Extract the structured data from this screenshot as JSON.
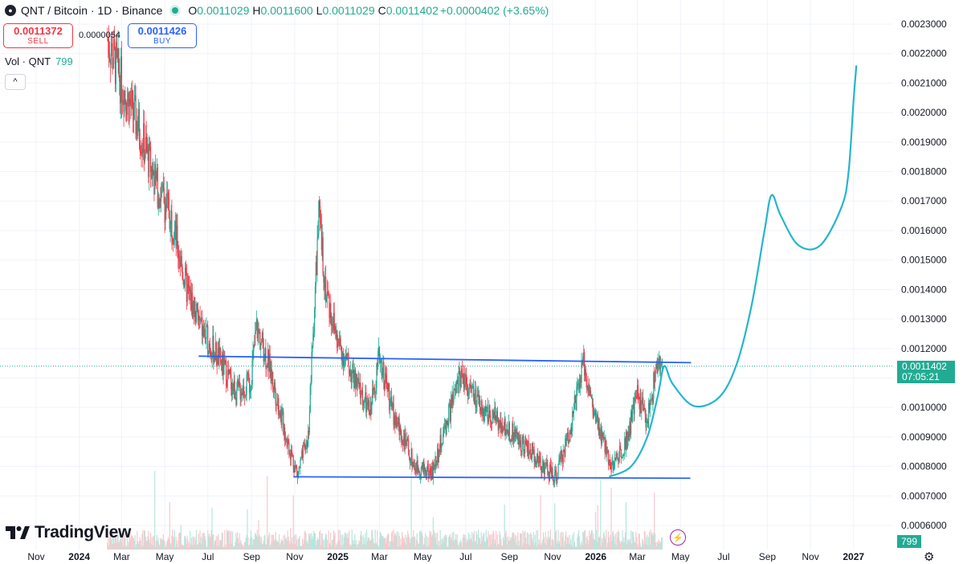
{
  "header": {
    "symbol_title": "QNT / Bitcoin · 1D · Binance",
    "ohlc": [
      {
        "k": "O",
        "v": "0.0011029"
      },
      {
        "k": "H",
        "v": "0.0011600"
      },
      {
        "k": "L",
        "v": "0.0011029"
      },
      {
        "k": "C",
        "v": "0.0011402"
      }
    ],
    "change": "+0.0000402 (+3.65%)"
  },
  "trade": {
    "sell_price": "0.0011372",
    "sell_label": "SELL",
    "spread": "0.0000054",
    "buy_price": "0.0011426",
    "buy_label": "BUY"
  },
  "volume_legend": {
    "label": "Vol · QNT",
    "value": "799"
  },
  "branding": {
    "name": "TradingView"
  },
  "last_price": {
    "value": "0.0011402",
    "countdown": "07:05:21"
  },
  "volume_tag": "799",
  "colors": {
    "up": "#22ab94",
    "down": "#f23645",
    "trendline": "#2962ff",
    "projection": "#26b5cc",
    "volume_up": "#b9e5dd",
    "volume_down": "#f7c9cd"
  },
  "chart_data": {
    "type": "candlestick",
    "y_axis_scale": "linear",
    "ylim": [
      0.00055,
      0.00234
    ],
    "y_ticks": [
      "0.0023000",
      "0.0022000",
      "0.0021000",
      "0.0020000",
      "0.0019000",
      "0.0018000",
      "0.0017000",
      "0.0016000",
      "0.0015000",
      "0.0014000",
      "0.0013000",
      "0.0012000",
      "0.0011000",
      "0.0010000",
      "0.0009000",
      "0.0008000",
      "0.0007000",
      "0.0006000"
    ],
    "y_tick_values": [
      0.0023,
      0.0022,
      0.0021,
      0.002,
      0.0019,
      0.0018,
      0.0017,
      0.0016,
      0.0015,
      0.0014,
      0.0013,
      0.0012,
      0.0011,
      0.001,
      0.0009,
      0.0008,
      0.0007,
      0.0006
    ],
    "x_range": [
      "2023-11-01",
      "2027-02-01"
    ],
    "x_ticks": [
      {
        "label": "Nov",
        "date": "2023-11-01",
        "bold": false
      },
      {
        "label": "2024",
        "date": "2024-01-01",
        "bold": true
      },
      {
        "label": "Mar",
        "date": "2024-03-01",
        "bold": false
      },
      {
        "label": "May",
        "date": "2024-05-01",
        "bold": false
      },
      {
        "label": "Jul",
        "date": "2024-07-01",
        "bold": false
      },
      {
        "label": "Sep",
        "date": "2024-09-01",
        "bold": false
      },
      {
        "label": "Nov",
        "date": "2024-11-01",
        "bold": false
      },
      {
        "label": "2025",
        "date": "2025-01-01",
        "bold": true
      },
      {
        "label": "Mar",
        "date": "2025-03-01",
        "bold": false
      },
      {
        "label": "May",
        "date": "2025-05-01",
        "bold": false
      },
      {
        "label": "Jul",
        "date": "2025-07-01",
        "bold": false
      },
      {
        "label": "Sep",
        "date": "2025-09-01",
        "bold": false
      },
      {
        "label": "Nov",
        "date": "2025-11-01",
        "bold": false
      },
      {
        "label": "2026",
        "date": "2026-01-01",
        "bold": true
      },
      {
        "label": "Mar",
        "date": "2026-03-01",
        "bold": false
      },
      {
        "label": "May",
        "date": "2026-05-01",
        "bold": false
      },
      {
        "label": "Jul",
        "date": "2026-07-01",
        "bold": false
      },
      {
        "label": "Sep",
        "date": "2026-09-01",
        "bold": false
      },
      {
        "label": "Nov",
        "date": "2026-11-01",
        "bold": false
      },
      {
        "label": "2027",
        "date": "2027-01-01",
        "bold": true
      }
    ],
    "price_path": [
      {
        "date": "2024-02-10",
        "price": 0.00225
      },
      {
        "date": "2024-03-01",
        "price": 0.0021
      },
      {
        "date": "2024-03-25",
        "price": 0.00195
      },
      {
        "date": "2024-04-20",
        "price": 0.00175
      },
      {
        "date": "2024-05-10",
        "price": 0.00165
      },
      {
        "date": "2024-06-01",
        "price": 0.0014
      },
      {
        "date": "2024-06-25",
        "price": 0.00125
      },
      {
        "date": "2024-07-20",
        "price": 0.00115
      },
      {
        "date": "2024-08-10",
        "price": 0.00105
      },
      {
        "date": "2024-08-30",
        "price": 0.00108
      },
      {
        "date": "2024-09-08",
        "price": 0.00127
      },
      {
        "date": "2024-09-25",
        "price": 0.00115
      },
      {
        "date": "2024-10-20",
        "price": 0.0009
      },
      {
        "date": "2024-11-05",
        "price": 0.00077
      },
      {
        "date": "2024-11-20",
        "price": 0.0009
      },
      {
        "date": "2024-12-05",
        "price": 0.00165
      },
      {
        "date": "2024-12-15",
        "price": 0.0014
      },
      {
        "date": "2025-01-01",
        "price": 0.00122
      },
      {
        "date": "2025-01-20",
        "price": 0.00112
      },
      {
        "date": "2025-02-15",
        "price": 0.00098
      },
      {
        "date": "2025-03-01",
        "price": 0.00118
      },
      {
        "date": "2025-03-20",
        "price": 0.00098
      },
      {
        "date": "2025-04-20",
        "price": 0.0008
      },
      {
        "date": "2025-05-15",
        "price": 0.00078
      },
      {
        "date": "2025-06-10",
        "price": 0.001
      },
      {
        "date": "2025-06-25",
        "price": 0.00112
      },
      {
        "date": "2025-07-20",
        "price": 0.001
      },
      {
        "date": "2025-08-20",
        "price": 0.00095
      },
      {
        "date": "2025-09-20",
        "price": 0.00088
      },
      {
        "date": "2025-10-20",
        "price": 0.0008
      },
      {
        "date": "2025-11-05",
        "price": 0.00076
      },
      {
        "date": "2025-11-25",
        "price": 0.00092
      },
      {
        "date": "2025-12-15",
        "price": 0.00115
      },
      {
        "date": "2026-01-01",
        "price": 0.00095
      },
      {
        "date": "2026-01-25",
        "price": 0.0008
      },
      {
        "date": "2026-02-15",
        "price": 0.0009
      },
      {
        "date": "2026-03-01",
        "price": 0.00105
      },
      {
        "date": "2026-03-15",
        "price": 0.00095
      },
      {
        "date": "2026-03-28",
        "price": 0.00114
      },
      {
        "date": "2026-04-05",
        "price": 0.00114
      }
    ],
    "resistance_line": [
      {
        "date": "2024-06-18",
        "price": 0.001174
      },
      {
        "date": "2026-05-16",
        "price": 0.001152
      }
    ],
    "support_line": [
      {
        "date": "2024-10-30",
        "price": 0.000765
      },
      {
        "date": "2026-05-15",
        "price": 0.00076
      }
    ],
    "projection_curve": [
      {
        "date": "2026-01-20",
        "price": 0.000765
      },
      {
        "date": "2026-02-20",
        "price": 0.0008
      },
      {
        "date": "2026-03-15",
        "price": 0.0009
      },
      {
        "date": "2026-03-30",
        "price": 0.00104
      },
      {
        "date": "2026-04-08",
        "price": 0.00114
      },
      {
        "date": "2026-04-20",
        "price": 0.00108
      },
      {
        "date": "2026-05-20",
        "price": 0.001005
      },
      {
        "date": "2026-06-25",
        "price": 0.001035
      },
      {
        "date": "2026-07-20",
        "price": 0.00115
      },
      {
        "date": "2026-08-10",
        "price": 0.00135
      },
      {
        "date": "2026-08-28",
        "price": 0.0016
      },
      {
        "date": "2026-09-07",
        "price": 0.00172
      },
      {
        "date": "2026-09-20",
        "price": 0.00165
      },
      {
        "date": "2026-10-15",
        "price": 0.00155
      },
      {
        "date": "2026-11-15",
        "price": 0.00155
      },
      {
        "date": "2026-12-15",
        "price": 0.00168
      },
      {
        "date": "2026-12-25",
        "price": 0.0018
      },
      {
        "date": "2027-01-01",
        "price": 0.00204
      },
      {
        "date": "2027-01-05",
        "price": 0.00216
      }
    ],
    "last_price": 0.0011402
  }
}
